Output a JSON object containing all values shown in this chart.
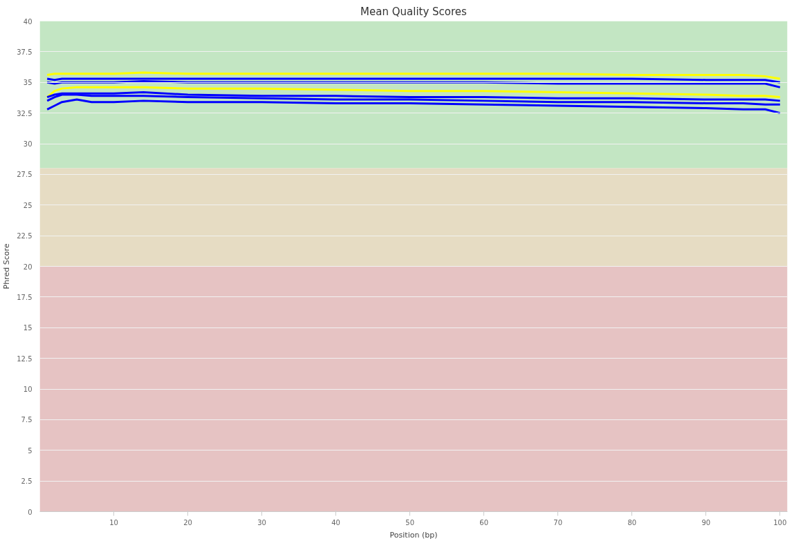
{
  "chart_data": {
    "type": "line",
    "title": "Mean Quality Scores",
    "xlabel": "Position (bp)",
    "ylabel": "Phred Score",
    "x": [
      1,
      2,
      3,
      5,
      7,
      10,
      14,
      20,
      30,
      40,
      50,
      60,
      70,
      80,
      90,
      95,
      98,
      100
    ],
    "series": [
      {
        "color": "#ffff00",
        "values": [
          35.6,
          35.7,
          35.7,
          35.7,
          35.7,
          35.7,
          35.8,
          35.7,
          35.7,
          35.7,
          35.7,
          35.7,
          35.7,
          35.6,
          35.6,
          35.6,
          35.5,
          35.3
        ]
      },
      {
        "color": "#0000ff",
        "values": [
          35.3,
          35.2,
          35.3,
          35.3,
          35.3,
          35.3,
          35.3,
          35.3,
          35.3,
          35.3,
          35.3,
          35.3,
          35.3,
          35.3,
          35.2,
          35.2,
          35.2,
          35.0
        ]
      },
      {
        "color": "#0000ff",
        "values": [
          35.0,
          34.9,
          35.0,
          35.0,
          35.0,
          35.0,
          35.1,
          35.0,
          35.0,
          35.0,
          35.0,
          35.0,
          34.9,
          34.9,
          34.9,
          34.9,
          34.9,
          34.6
        ]
      },
      {
        "color": "#ffff00",
        "values": [
          33.8,
          34.3,
          34.5,
          34.6,
          34.6,
          34.6,
          34.6,
          34.5,
          34.5,
          34.4,
          34.3,
          34.3,
          34.2,
          34.1,
          34.0,
          33.9,
          33.9,
          33.8
        ]
      },
      {
        "color": "#0000ff",
        "values": [
          33.8,
          34.0,
          34.1,
          34.1,
          34.1,
          34.1,
          34.2,
          34.0,
          33.9,
          33.9,
          33.8,
          33.8,
          33.7,
          33.7,
          33.6,
          33.6,
          33.6,
          33.5
        ]
      },
      {
        "color": "#0000ff",
        "values": [
          33.5,
          33.8,
          34.0,
          34.0,
          33.9,
          33.9,
          33.9,
          33.8,
          33.7,
          33.6,
          33.6,
          33.5,
          33.4,
          33.4,
          33.3,
          33.3,
          33.2,
          33.2
        ]
      },
      {
        "color": "#0000ff",
        "values": [
          32.8,
          33.1,
          33.4,
          33.6,
          33.4,
          33.4,
          33.5,
          33.4,
          33.4,
          33.3,
          33.3,
          33.2,
          33.1,
          33.0,
          32.9,
          32.8,
          32.8,
          32.5
        ]
      }
    ],
    "xlim": [
      0,
      101
    ],
    "ylim": [
      0,
      40
    ],
    "xticks": [
      10,
      20,
      30,
      40,
      50,
      60,
      70,
      80,
      90,
      100
    ],
    "yticks": [
      0,
      2.5,
      5,
      7.5,
      10,
      12.5,
      15,
      17.5,
      20,
      22.5,
      25,
      27.5,
      30,
      32.5,
      35,
      37.5,
      40
    ],
    "bands": [
      {
        "axis": "y",
        "from": 28,
        "to": 40,
        "color": "#c3e6c3"
      },
      {
        "axis": "y",
        "from": 20,
        "to": 28,
        "color": "#e6dcc3"
      },
      {
        "axis": "y",
        "from": 0,
        "to": 20,
        "color": "#e6c3c3"
      }
    ],
    "grid": "y",
    "marker": "none",
    "line_style": "solid"
  }
}
